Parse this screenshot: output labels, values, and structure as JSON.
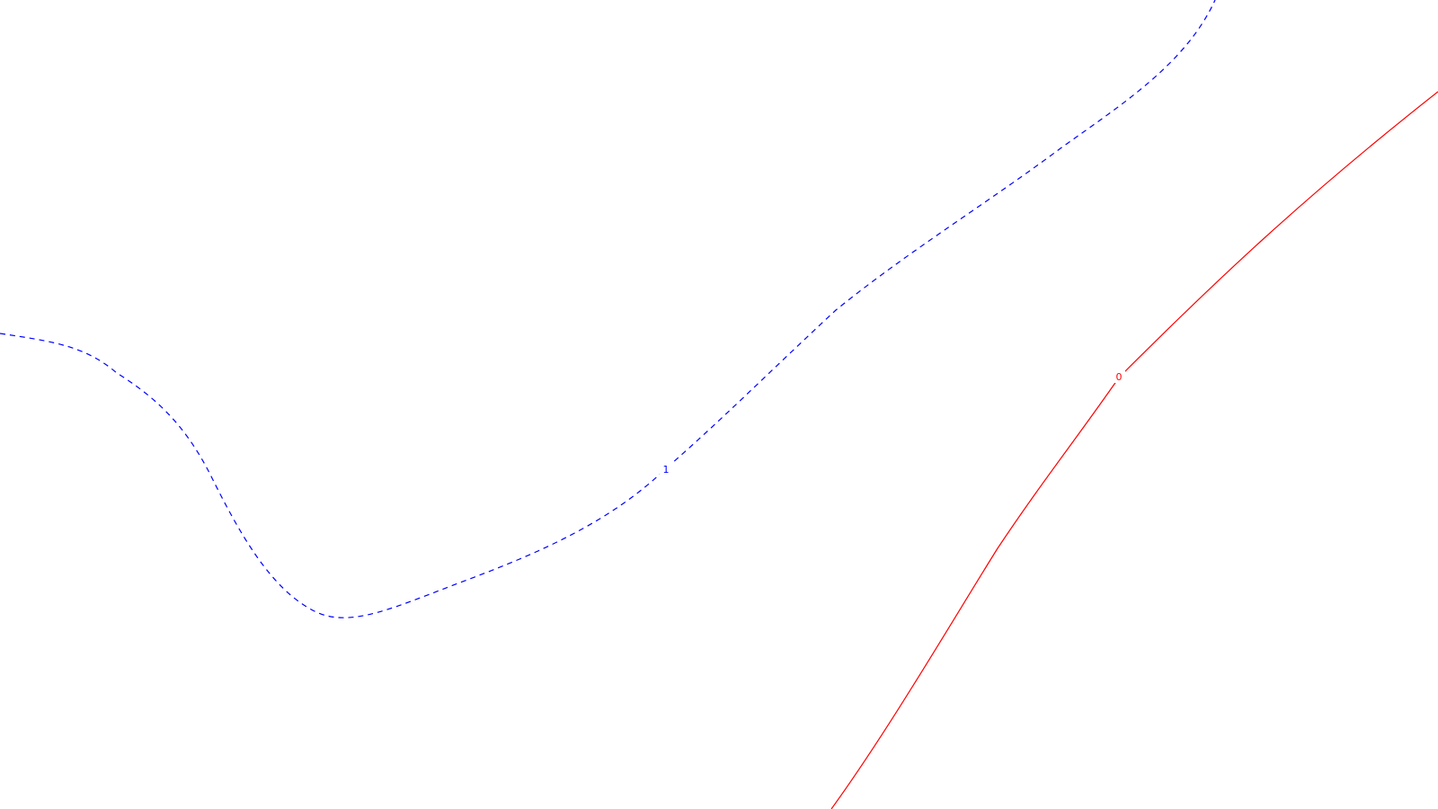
{
  "contours": [
    {
      "label": "1",
      "color": "#0000ff",
      "style": "dashed"
    },
    {
      "label": "0",
      "color": "#ff0000",
      "style": "solid"
    }
  ]
}
